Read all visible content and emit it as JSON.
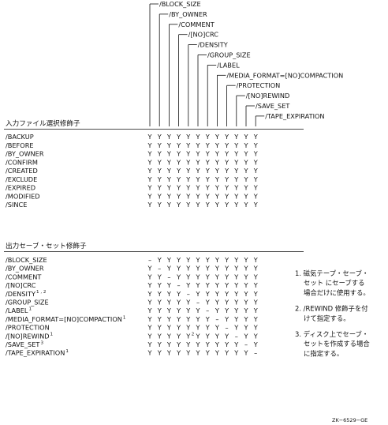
{
  "qualifiers": [
    "/BLOCK_SIZE",
    "/BY_OWNER",
    "/COMMENT",
    "/[NO]CRC",
    "/DENSITY",
    "/GROUP_SIZE",
    "/LABEL",
    "/MEDIA_FORMAT=[NO]COMPACTION",
    "/PROTECTION",
    "/[NO]REWIND",
    "/SAVE_SET",
    "/TAPE_EXPIRATION"
  ],
  "input_section": {
    "title": "入力ファイル選択修飾子",
    "rows": [
      {
        "label": "/BACKUP",
        "values": [
          "Y",
          "Y",
          "Y",
          "Y",
          "Y",
          "Y",
          "Y",
          "Y",
          "Y",
          "Y",
          "Y",
          "Y"
        ]
      },
      {
        "label": "/BEFORE",
        "values": [
          "Y",
          "Y",
          "Y",
          "Y",
          "Y",
          "Y",
          "Y",
          "Y",
          "Y",
          "Y",
          "Y",
          "Y"
        ]
      },
      {
        "label": "/BY_OWNER",
        "values": [
          "Y",
          "Y",
          "Y",
          "Y",
          "Y",
          "Y",
          "Y",
          "Y",
          "Y",
          "Y",
          "Y",
          "Y"
        ]
      },
      {
        "label": "/CONFIRM",
        "values": [
          "Y",
          "Y",
          "Y",
          "Y",
          "Y",
          "Y",
          "Y",
          "Y",
          "Y",
          "Y",
          "Y",
          "Y"
        ]
      },
      {
        "label": "/CREATED",
        "values": [
          "Y",
          "Y",
          "Y",
          "Y",
          "Y",
          "Y",
          "Y",
          "Y",
          "Y",
          "Y",
          "Y",
          "Y"
        ]
      },
      {
        "label": "/EXCLUDE",
        "values": [
          "Y",
          "Y",
          "Y",
          "Y",
          "Y",
          "Y",
          "Y",
          "Y",
          "Y",
          "Y",
          "Y",
          "Y"
        ]
      },
      {
        "label": "/EXPIRED",
        "values": [
          "Y",
          "Y",
          "Y",
          "Y",
          "Y",
          "Y",
          "Y",
          "Y",
          "Y",
          "Y",
          "Y",
          "Y"
        ]
      },
      {
        "label": "/MODIFIED",
        "values": [
          "Y",
          "Y",
          "Y",
          "Y",
          "Y",
          "Y",
          "Y",
          "Y",
          "Y",
          "Y",
          "Y",
          "Y"
        ]
      },
      {
        "label": "/SINCE",
        "values": [
          "Y",
          "Y",
          "Y",
          "Y",
          "Y",
          "Y",
          "Y",
          "Y",
          "Y",
          "Y",
          "Y",
          "Y"
        ]
      }
    ]
  },
  "output_section": {
    "title": "出力セーブ・セット修飾子",
    "rows": [
      {
        "label": "/BLOCK_SIZE",
        "sup": "",
        "values": [
          "–",
          "Y",
          "Y",
          "Y",
          "Y",
          "Y",
          "Y",
          "Y",
          "Y",
          "Y",
          "Y",
          "Y"
        ]
      },
      {
        "label": "/BY_OWNER",
        "sup": "",
        "values": [
          "Y",
          "–",
          "Y",
          "Y",
          "Y",
          "Y",
          "Y",
          "Y",
          "Y",
          "Y",
          "Y",
          "Y"
        ]
      },
      {
        "label": "/COMMENT",
        "sup": "",
        "values": [
          "Y",
          "Y",
          "–",
          "Y",
          "Y",
          "Y",
          "Y",
          "Y",
          "Y",
          "Y",
          "Y",
          "Y"
        ]
      },
      {
        "label": "/[NO]CRC",
        "sup": "",
        "values": [
          "Y",
          "Y",
          "Y",
          "–",
          "Y",
          "Y",
          "Y",
          "Y",
          "Y",
          "Y",
          "Y",
          "Y"
        ]
      },
      {
        "label": "/DENSITY",
        "sup": "1 , 2",
        "values": [
          "Y",
          "Y",
          "Y",
          "Y",
          "–",
          "Y",
          "Y",
          "Y",
          "Y",
          "Y",
          "Y",
          "Y"
        ]
      },
      {
        "label": "/GROUP_SIZE",
        "sup": "",
        "values": [
          "Y",
          "Y",
          "Y",
          "Y",
          "Y",
          "–",
          "Y",
          "Y",
          "Y",
          "Y",
          "Y",
          "Y"
        ]
      },
      {
        "label": "/LABEL",
        "sup": "1",
        "values": [
          "Y",
          "Y",
          "Y",
          "Y",
          "Y",
          "Y",
          "–",
          "Y",
          "Y",
          "Y",
          "Y",
          "Y"
        ]
      },
      {
        "label": "/MEDIA_FORMAT=[NO]COMPACTION",
        "sup": "1",
        "values": [
          "Y",
          "Y",
          "Y",
          "Y",
          "Y",
          "Y",
          "Y",
          "–",
          "Y",
          "Y",
          "Y",
          "Y"
        ]
      },
      {
        "label": "/PROTECTION",
        "sup": "",
        "values": [
          "Y",
          "Y",
          "Y",
          "Y",
          "Y",
          "Y",
          "Y",
          "Y",
          "–",
          "Y",
          "Y",
          "Y"
        ]
      },
      {
        "label": "/[NO]REWIND",
        "sup": "1",
        "values": [
          "Y",
          "Y",
          "Y",
          "Y",
          "Y²",
          "Y",
          "Y",
          "Y",
          "Y",
          "–",
          "Y",
          "Y"
        ]
      },
      {
        "label": "/SAVE_SET",
        "sup": "3",
        "values": [
          "Y",
          "Y",
          "Y",
          "Y",
          "Y",
          "Y",
          "Y",
          "Y",
          "Y",
          "Y",
          "–",
          "Y"
        ]
      },
      {
        "label": "/TAPE_EXPIRATION",
        "sup": "1",
        "values": [
          "Y",
          "Y",
          "Y",
          "Y",
          "Y",
          "Y",
          "Y",
          "Y",
          "Y",
          "Y",
          "Y",
          "–"
        ]
      }
    ]
  },
  "notes": [
    [
      "1. 磁気テープ・セーブ・",
      "セット にセーブする",
      "場合だけに使用する。"
    ],
    [
      "2. /REWIND 修飾子を付",
      "けて指定する。"
    ],
    [
      "3. ディスク上でセーブ・",
      "セットを作成する場合",
      "に指定する。"
    ]
  ],
  "figure_id": "ZK−6529−GE"
}
